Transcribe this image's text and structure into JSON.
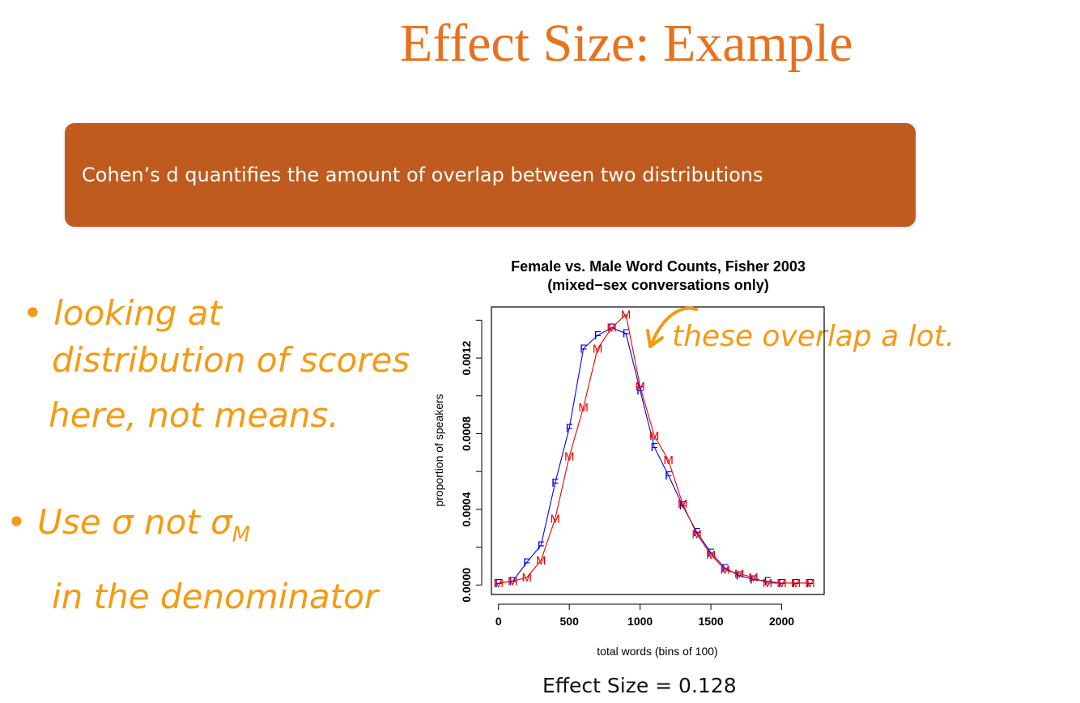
{
  "slide": {
    "title": "Effect Size: Example",
    "banner_text": "Cohen’s d quantifies the amount of overlap between two distributions",
    "effect_size_text": "Effect Size = 0.128"
  },
  "annotations": {
    "bullet1_line1": "• looking at",
    "bullet1_line2": "distribution of scores",
    "bullet1_line3": "here, not means.",
    "bullet2_line1": "• Use σ not σ",
    "bullet2_subscript": "M",
    "bullet2_line2": "in the denominator",
    "arrow_note": "these overlap a lot.",
    "ink_color": "#f59a12"
  },
  "chart_data": {
    "type": "line",
    "title": "Female vs. Male Word Counts, Fisher 2003",
    "subtitle": "(mixed−sex conversations only)",
    "xlabel": "total words (bins of 100)",
    "ylabel": "proportion of speakers",
    "xlim": [
      -50,
      2300
    ],
    "ylim": [
      -5e-05,
      0.00147
    ],
    "x_ticks": [
      "0",
      "500",
      "1000",
      "1500",
      "2000"
    ],
    "y_ticks": [
      "0.0000",
      "0.0004",
      "0.0008",
      "0.0012"
    ],
    "series": [
      {
        "name": "F",
        "color": "#0000ee",
        "x": [
          0,
          100,
          200,
          300,
          400,
          500,
          600,
          700,
          800,
          900,
          1000,
          1100,
          1200,
          1300,
          1400,
          1500,
          1600,
          1700,
          1800,
          1900,
          2000,
          2100,
          2200
        ],
        "y": [
          1e-05,
          2e-05,
          0.00012,
          0.00021,
          0.00054,
          0.00083,
          0.00125,
          0.00132,
          0.00136,
          0.00133,
          0.00103,
          0.00073,
          0.00058,
          0.00042,
          0.00028,
          0.00017,
          9e-05,
          5e-05,
          3e-05,
          2e-05,
          1e-05,
          1e-05,
          1e-05
        ]
      },
      {
        "name": "M",
        "color": "#ee0000",
        "x": [
          0,
          100,
          200,
          300,
          400,
          500,
          600,
          700,
          800,
          900,
          1000,
          1100,
          1200,
          1300,
          1400,
          1500,
          1600,
          1700,
          1800,
          1900,
          2000,
          2100,
          2200
        ],
        "y": [
          1e-05,
          2e-05,
          4e-05,
          0.00013,
          0.00035,
          0.00068,
          0.00094,
          0.00125,
          0.00136,
          0.00143,
          0.00105,
          0.00079,
          0.00066,
          0.00043,
          0.00027,
          0.00016,
          8e-05,
          6e-05,
          4e-05,
          1e-05,
          1e-05,
          1e-05,
          1e-05
        ]
      }
    ]
  }
}
